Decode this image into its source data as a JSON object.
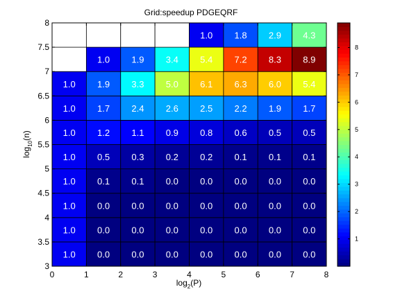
{
  "chart_data": {
    "type": "heatmap",
    "title": "Grid:speedup PDGEQRF",
    "xlabel_main": "log",
    "xlabel_sub": "2",
    "xlabel_tail": "(P)",
    "ylabel_main": "log",
    "ylabel_sub": "10",
    "ylabel_tail": "(n)",
    "xlim": [
      0,
      8
    ],
    "ylim": [
      3,
      8
    ],
    "xticks": [
      "0",
      "1",
      "2",
      "3",
      "4",
      "5",
      "6",
      "7",
      "8"
    ],
    "yticks": [
      "3",
      "3.5",
      "4",
      "4.5",
      "5",
      "5.5",
      "6",
      "6.5",
      "7",
      "7.5",
      "8"
    ],
    "x_columns": [
      0,
      1,
      2,
      3,
      4,
      5,
      6,
      7
    ],
    "y_rows": [
      3,
      3.5,
      4,
      4.5,
      5,
      5.5,
      6,
      6.5,
      7,
      7.5
    ],
    "values": [
      [
        1.0,
        0.0,
        0.0,
        0.0,
        0.0,
        0.0,
        0.0,
        0.0
      ],
      [
        1.0,
        0.0,
        0.0,
        0.0,
        0.0,
        0.0,
        0.0,
        0.0
      ],
      [
        1.0,
        0.0,
        0.0,
        0.0,
        0.0,
        0.0,
        0.0,
        0.0
      ],
      [
        1.0,
        0.1,
        0.1,
        0.0,
        0.0,
        0.0,
        0.0,
        0.0
      ],
      [
        1.0,
        0.5,
        0.3,
        0.2,
        0.2,
        0.1,
        0.1,
        0.1
      ],
      [
        1.0,
        1.2,
        1.1,
        0.9,
        0.8,
        0.6,
        0.5,
        0.5
      ],
      [
        1.0,
        1.7,
        2.4,
        2.6,
        2.5,
        2.2,
        1.9,
        1.7
      ],
      [
        1.0,
        1.9,
        3.3,
        5.0,
        6.1,
        6.3,
        6.0,
        5.4
      ],
      [
        null,
        1.0,
        1.9,
        3.4,
        5.4,
        7.2,
        8.3,
        8.9
      ],
      [
        null,
        null,
        null,
        null,
        1.0,
        1.8,
        2.9,
        4.3
      ]
    ],
    "colorbar": {
      "ticks": [
        "1",
        "2",
        "3",
        "4",
        "5",
        "6",
        "7",
        "8"
      ],
      "tick_values": [
        1,
        2,
        3,
        4,
        5,
        6,
        7,
        8
      ],
      "vmin": 0,
      "vmax": 8.9,
      "colormap": "jet"
    }
  }
}
